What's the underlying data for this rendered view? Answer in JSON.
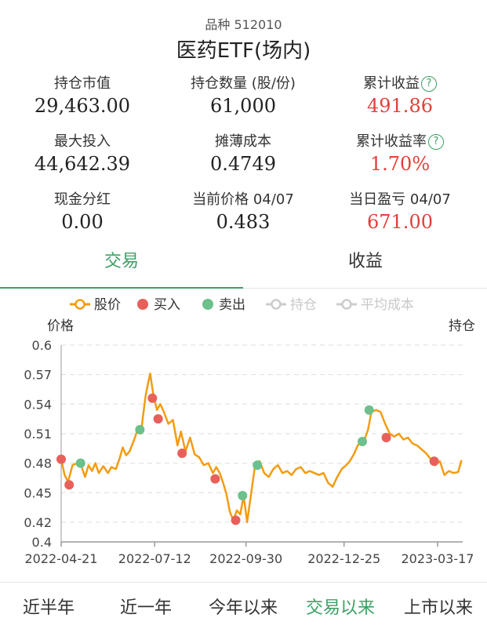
{
  "header": {
    "code_label": "品种 512010",
    "fund_name": "医药ETF(场内)"
  },
  "metrics": [
    {
      "label": "持仓市值",
      "value": "29,463.00",
      "color": "normal",
      "help": false
    },
    {
      "label": "持仓数量 (股/份)",
      "value": "61,000",
      "color": "normal",
      "help": false
    },
    {
      "label": "累计收益",
      "value": "491.86",
      "color": "red",
      "help": true
    },
    {
      "label": "最大投入",
      "value": "44,642.39",
      "color": "normal",
      "help": false
    },
    {
      "label": "摊薄成本",
      "value": "0.4749",
      "color": "normal",
      "help": false
    },
    {
      "label": "累计收益率",
      "value": "1.70%",
      "color": "red",
      "help": true
    },
    {
      "label": "现金分红",
      "value": "0.00",
      "color": "normal",
      "help": false
    },
    {
      "label": "当前价格 04/07",
      "value": "0.483",
      "color": "normal",
      "help": false
    },
    {
      "label": "当日盈亏 04/07",
      "value": "671.00",
      "color": "red",
      "help": false
    }
  ],
  "help_glyph": "?",
  "tabs": [
    {
      "label": "交易",
      "active": true
    },
    {
      "label": "收益",
      "active": false
    }
  ],
  "legend": [
    {
      "label": "股价",
      "kind": "line",
      "color": "#f39c12",
      "active": true
    },
    {
      "label": "买入",
      "kind": "dot",
      "color": "#e8605a",
      "active": true
    },
    {
      "label": "卖出",
      "kind": "dot",
      "color": "#6cc08b",
      "active": true
    },
    {
      "label": "持仓",
      "kind": "line",
      "color": "#cccccc",
      "active": false
    },
    {
      "label": "平均成本",
      "kind": "line",
      "color": "#cccccc",
      "active": false
    }
  ],
  "chart_data": {
    "type": "line",
    "ylabel": "价格",
    "y2label": "持仓",
    "ylim": [
      0.4,
      0.6
    ],
    "y_ticks": [
      "0.6",
      "0.57",
      "0.54",
      "0.51",
      "0.48",
      "0.45",
      "0.42",
      "0.4"
    ],
    "x_tick_labels": [
      "2022-04-21",
      "2022-07-12",
      "2022-09-30",
      "2022-12-25",
      "2023-03-17"
    ],
    "grid": "horizontal-dashed",
    "colors": {
      "price": "#f39c12",
      "buy": "#e8605a",
      "sell": "#6cc08b",
      "axis": "#999999",
      "grid": "#dddddd"
    },
    "price_series": {
      "name": "股价",
      "x": [
        "2022-04-21",
        "2022-04-24",
        "2022-04-27",
        "2022-05-01",
        "2022-05-05",
        "2022-05-09",
        "2022-05-12",
        "2022-05-15",
        "2022-05-18",
        "2022-05-21",
        "2022-05-24",
        "2022-05-28",
        "2022-06-01",
        "2022-06-04",
        "2022-06-08",
        "2022-06-11",
        "2022-06-14",
        "2022-06-17",
        "2022-06-20",
        "2022-06-24",
        "2022-06-27",
        "2022-06-30",
        "2022-07-02",
        "2022-07-04",
        "2022-07-06",
        "2022-07-08",
        "2022-07-11",
        "2022-07-14",
        "2022-07-17",
        "2022-07-20",
        "2022-07-24",
        "2022-07-28",
        "2022-08-01",
        "2022-08-04",
        "2022-08-08",
        "2022-08-12",
        "2022-08-16",
        "2022-08-20",
        "2022-08-24",
        "2022-08-28",
        "2022-09-01",
        "2022-09-04",
        "2022-09-07",
        "2022-09-10",
        "2022-09-13",
        "2022-09-16",
        "2022-09-19",
        "2022-09-22",
        "2022-09-25",
        "2022-09-28",
        "2022-10-01",
        "2022-10-04",
        "2022-10-08",
        "2022-10-12",
        "2022-10-16",
        "2022-10-20",
        "2022-10-24",
        "2022-10-28",
        "2022-11-01",
        "2022-11-05",
        "2022-11-09",
        "2022-11-13",
        "2022-11-17",
        "2022-11-21",
        "2022-11-25",
        "2022-11-29",
        "2022-12-03",
        "2022-12-07",
        "2022-12-11",
        "2022-12-15",
        "2022-12-19",
        "2022-12-23",
        "2022-12-27",
        "2022-12-30",
        "2023-01-03",
        "2023-01-06",
        "2023-01-09",
        "2023-01-12",
        "2023-01-15",
        "2023-01-18",
        "2023-01-22",
        "2023-01-26",
        "2023-01-30",
        "2023-02-03",
        "2023-02-07",
        "2023-02-11",
        "2023-02-15",
        "2023-02-19",
        "2023-02-23",
        "2023-02-27",
        "2023-03-03",
        "2023-03-07",
        "2023-03-11",
        "2023-03-15",
        "2023-03-19",
        "2023-03-23",
        "2023-03-27",
        "2023-03-31",
        "2023-04-04",
        "2023-04-07"
      ],
      "values": [
        0.484,
        0.468,
        0.461,
        0.478,
        0.48,
        0.476,
        0.466,
        0.478,
        0.472,
        0.48,
        0.47,
        0.477,
        0.47,
        0.476,
        0.474,
        0.484,
        0.496,
        0.488,
        0.492,
        0.504,
        0.514,
        0.51,
        0.53,
        0.548,
        0.56,
        0.571,
        0.548,
        0.534,
        0.54,
        0.532,
        0.52,
        0.524,
        0.498,
        0.512,
        0.492,
        0.506,
        0.489,
        0.486,
        0.478,
        0.48,
        0.47,
        0.476,
        0.47,
        0.46,
        0.448,
        0.43,
        0.422,
        0.432,
        0.428,
        0.447,
        0.42,
        0.445,
        0.478,
        0.482,
        0.47,
        0.466,
        0.474,
        0.478,
        0.47,
        0.472,
        0.468,
        0.474,
        0.476,
        0.47,
        0.472,
        0.47,
        0.468,
        0.47,
        0.46,
        0.456,
        0.466,
        0.474,
        0.478,
        0.482,
        0.49,
        0.498,
        0.502,
        0.504,
        0.514,
        0.532,
        0.534,
        0.532,
        0.52,
        0.51,
        0.507,
        0.51,
        0.504,
        0.506,
        0.5,
        0.498,
        0.494,
        0.49,
        0.484,
        0.478,
        0.482,
        0.468,
        0.472,
        0.47,
        0.471,
        0.483
      ]
    },
    "buy_points": {
      "name": "买入",
      "x": [
        "2022-04-21",
        "2022-04-28",
        "2022-07-10",
        "2022-07-15",
        "2022-08-05",
        "2022-09-03",
        "2022-09-21",
        "2023-01-31",
        "2023-03-14"
      ],
      "values": [
        0.484,
        0.458,
        0.546,
        0.525,
        0.49,
        0.464,
        0.422,
        0.506,
        0.482
      ]
    },
    "sell_points": {
      "name": "卖出",
      "x": [
        "2022-05-08",
        "2022-06-29",
        "2022-09-27",
        "2022-10-10",
        "2023-01-10",
        "2023-01-16"
      ],
      "values": [
        0.48,
        0.514,
        0.447,
        0.478,
        0.502,
        0.534
      ]
    }
  },
  "ranges": [
    {
      "label": "近半年",
      "active": false
    },
    {
      "label": "近一年",
      "active": false
    },
    {
      "label": "今年以来",
      "active": false
    },
    {
      "label": "交易以来",
      "active": true
    },
    {
      "label": "上市以来",
      "active": false
    }
  ]
}
